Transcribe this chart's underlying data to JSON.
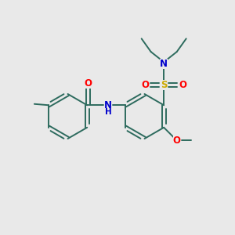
{
  "bg_color": "#e9e9e9",
  "bond_color": "#2d6b5e",
  "atom_colors": {
    "O": "#ff0000",
    "N": "#0000cc",
    "S": "#ccaa00",
    "C": "#2d6b5e"
  },
  "figsize": [
    3.0,
    3.0
  ],
  "dpi": 100,
  "lw": 1.4,
  "fs": 7.5
}
